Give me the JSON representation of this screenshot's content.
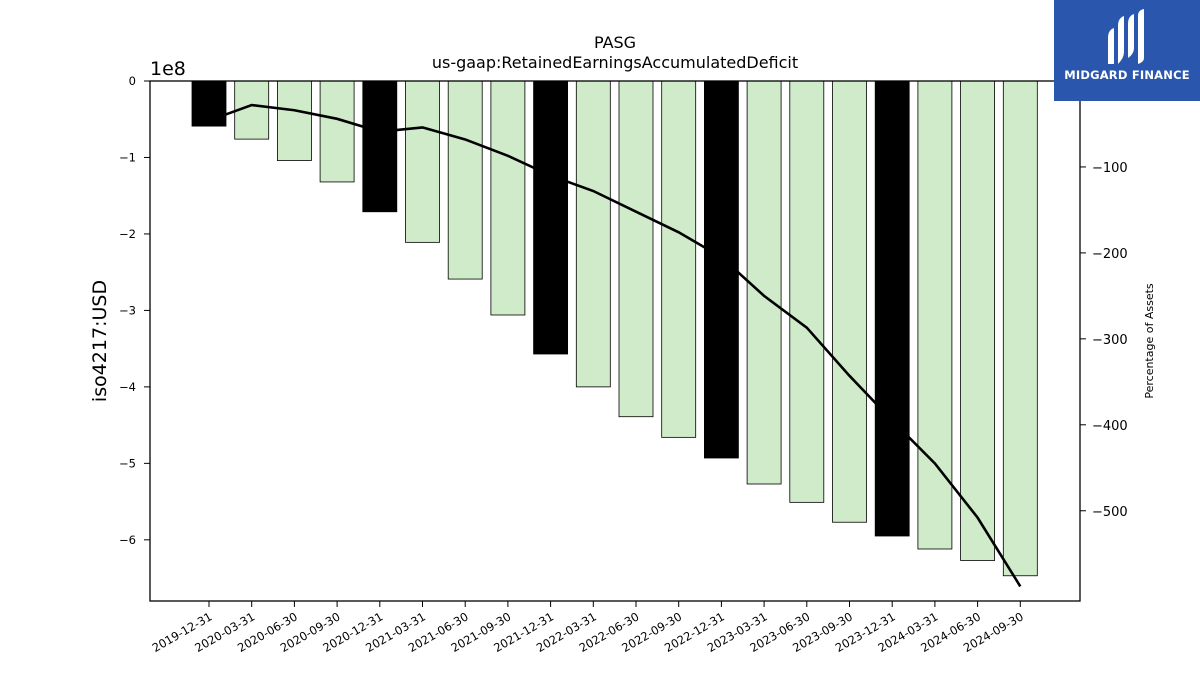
{
  "chart_data": {
    "type": "bar",
    "title": "PASG",
    "subtitle": "us-gaap:RetainedEarningsAccumulatedDeficit",
    "ylabel": "iso4217:USD",
    "y_offset_label": "1e8",
    "y2label": "Percentage of Assets",
    "ylim": [
      -6.8,
      0
    ],
    "y_ticks": [
      0,
      -1,
      -2,
      -3,
      -4,
      -5,
      -6
    ],
    "y2lim": [
      -605,
      0
    ],
    "y2_ticks": [
      -100,
      -200,
      -300,
      -400,
      -500
    ],
    "categories": [
      "2019-12-31",
      "2020-03-31",
      "2020-06-30",
      "2020-09-30",
      "2020-12-31",
      "2021-03-31",
      "2021-06-30",
      "2021-09-30",
      "2021-12-31",
      "2022-03-31",
      "2022-06-30",
      "2022-09-30",
      "2022-12-31",
      "2023-03-31",
      "2023-06-30",
      "2023-09-30",
      "2023-12-31",
      "2024-03-31",
      "2024-06-30",
      "2024-09-30"
    ],
    "series": [
      {
        "type": "bar",
        "axis": "left",
        "values": [
          -0.59,
          -0.76,
          -1.04,
          -1.32,
          -1.71,
          -2.11,
          -2.59,
          -3.06,
          -3.57,
          -4.0,
          -4.39,
          -4.66,
          -4.93,
          -5.27,
          -5.51,
          -5.77,
          -5.95,
          -6.12,
          -6.27,
          -6.47
        ],
        "annual": [
          true,
          false,
          false,
          false,
          true,
          false,
          false,
          false,
          true,
          false,
          false,
          false,
          true,
          false,
          false,
          false,
          true,
          false,
          false,
          false
        ]
      },
      {
        "type": "line",
        "axis": "right",
        "values": [
          -46,
          -28,
          -34,
          -44,
          -59,
          -54,
          -68,
          -87,
          -110,
          -128,
          -152,
          -176,
          -205,
          -250,
          -287,
          -343,
          -395,
          -445,
          -508,
          -588
        ]
      }
    ],
    "colors": {
      "annual_bar": "#000000",
      "quarter_bar": "#d0ebc9",
      "line": "#000000"
    },
    "grid": false,
    "legend": "none"
  },
  "logo": {
    "text": "MIDGARD FINANCE",
    "background": "#2a57ad"
  }
}
